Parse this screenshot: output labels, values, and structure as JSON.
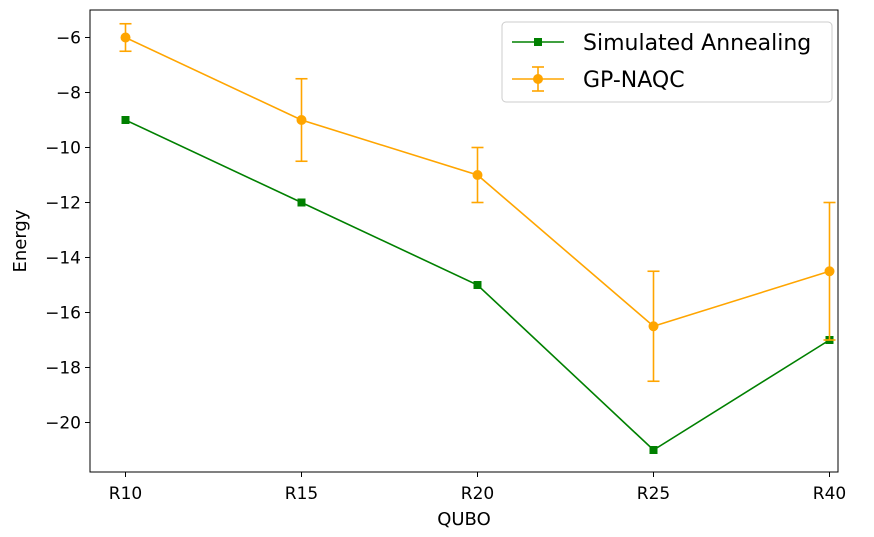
{
  "chart_data": {
    "type": "line",
    "title": "",
    "xlabel": "QUBO",
    "ylabel": "Energy",
    "categories": [
      "R10",
      "R15",
      "R20",
      "R25",
      "R40"
    ],
    "ylim": [
      -21.8,
      -5.0
    ],
    "yticks": [
      -20,
      -18,
      -16,
      -14,
      -12,
      -10,
      -8,
      -6
    ],
    "grid": false,
    "legend_placement": "top-right",
    "series": [
      {
        "name": "Simulated Annealing",
        "color": "#008000",
        "marker": "square",
        "values": [
          -9,
          -12,
          -15,
          -21,
          -17
        ]
      },
      {
        "name": "GP-NAQC",
        "color": "#FFA500",
        "marker": "circle",
        "values": [
          -6,
          -9,
          -11,
          -16.5,
          -14.5
        ],
        "error_low": [
          -6.5,
          -10.5,
          -12,
          -18.5,
          -17
        ],
        "error_high": [
          -5.5,
          -7.5,
          -10,
          -14.5,
          -12
        ]
      }
    ]
  }
}
